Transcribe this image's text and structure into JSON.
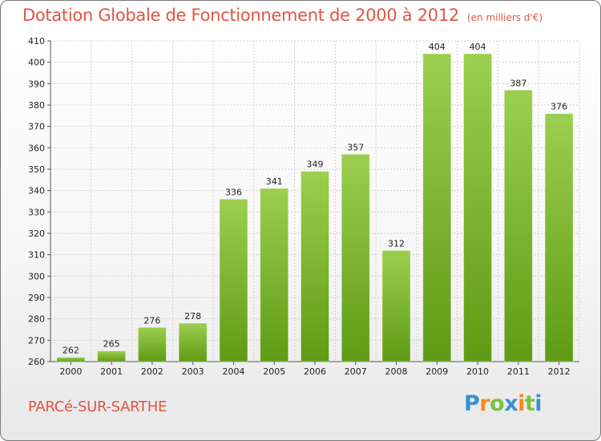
{
  "header": {
    "title": "Dotation Globale de Fonctionnement de 2000 à 2012",
    "subtitle": "(en milliers d'€)"
  },
  "footer": {
    "commune": "PARCé-SUR-SARTHE",
    "logo_letters": [
      {
        "ch": "P",
        "color": "#3a8fd6"
      },
      {
        "ch": "r",
        "color": "#f28a1e"
      },
      {
        "ch": "o",
        "color": "#7cc242"
      },
      {
        "ch": "x",
        "color": "#3a8fd6"
      },
      {
        "ch": "i",
        "color": "#f28a1e"
      },
      {
        "ch": "t",
        "color": "#7cc242"
      },
      {
        "ch": "i",
        "color": "#3a8fd6"
      }
    ]
  },
  "colors": {
    "bar_top": "#9ccf4f",
    "bar_bottom": "#5e9b14",
    "title": "#e05545",
    "grid": "#d0d0d0"
  },
  "chart_data": {
    "type": "bar",
    "categories": [
      "2000",
      "2001",
      "2002",
      "2003",
      "2004",
      "2005",
      "2006",
      "2007",
      "2008",
      "2009",
      "2010",
      "2011",
      "2012"
    ],
    "values": [
      262,
      265,
      276,
      278,
      336,
      341,
      349,
      357,
      312,
      404,
      404,
      387,
      376
    ],
    "ylim": [
      260,
      410
    ],
    "yticks": [
      260,
      270,
      280,
      290,
      300,
      310,
      320,
      330,
      340,
      350,
      360,
      370,
      380,
      390,
      400,
      410
    ],
    "grid": true,
    "xlabel": "",
    "ylabel": ""
  }
}
